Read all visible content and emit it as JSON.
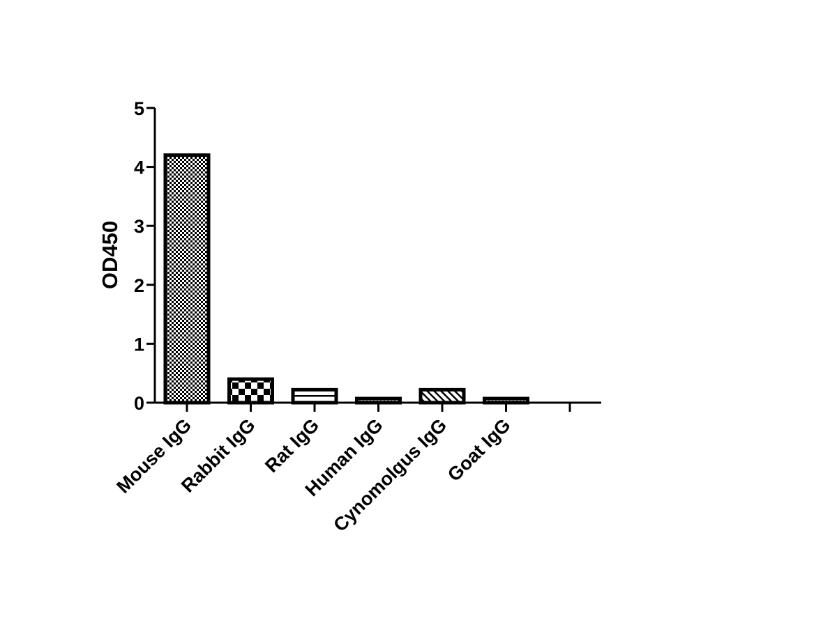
{
  "chart_data": {
    "type": "bar",
    "title": "",
    "xlabel": "",
    "ylabel": "OD450",
    "ylim": [
      0,
      5
    ],
    "yticks": [
      0,
      1,
      2,
      3,
      4,
      5
    ],
    "categories": [
      "Mouse IgG",
      "Rabbit IgG",
      "Rat IgG",
      "Human IgG",
      "Cynomolgus IgG",
      "Goat IgG",
      ""
    ],
    "values": [
      4.2,
      0.4,
      0.22,
      0.07,
      0.22,
      0.07,
      0
    ],
    "patterns": [
      "fine-checker",
      "coarse-checker",
      "horizontal-lines",
      "dotted",
      "diagonal-hatch",
      "dotted",
      "none"
    ],
    "grid": false,
    "legend": "none",
    "colors": {
      "stroke": "#000000",
      "background": "#ffffff"
    }
  }
}
